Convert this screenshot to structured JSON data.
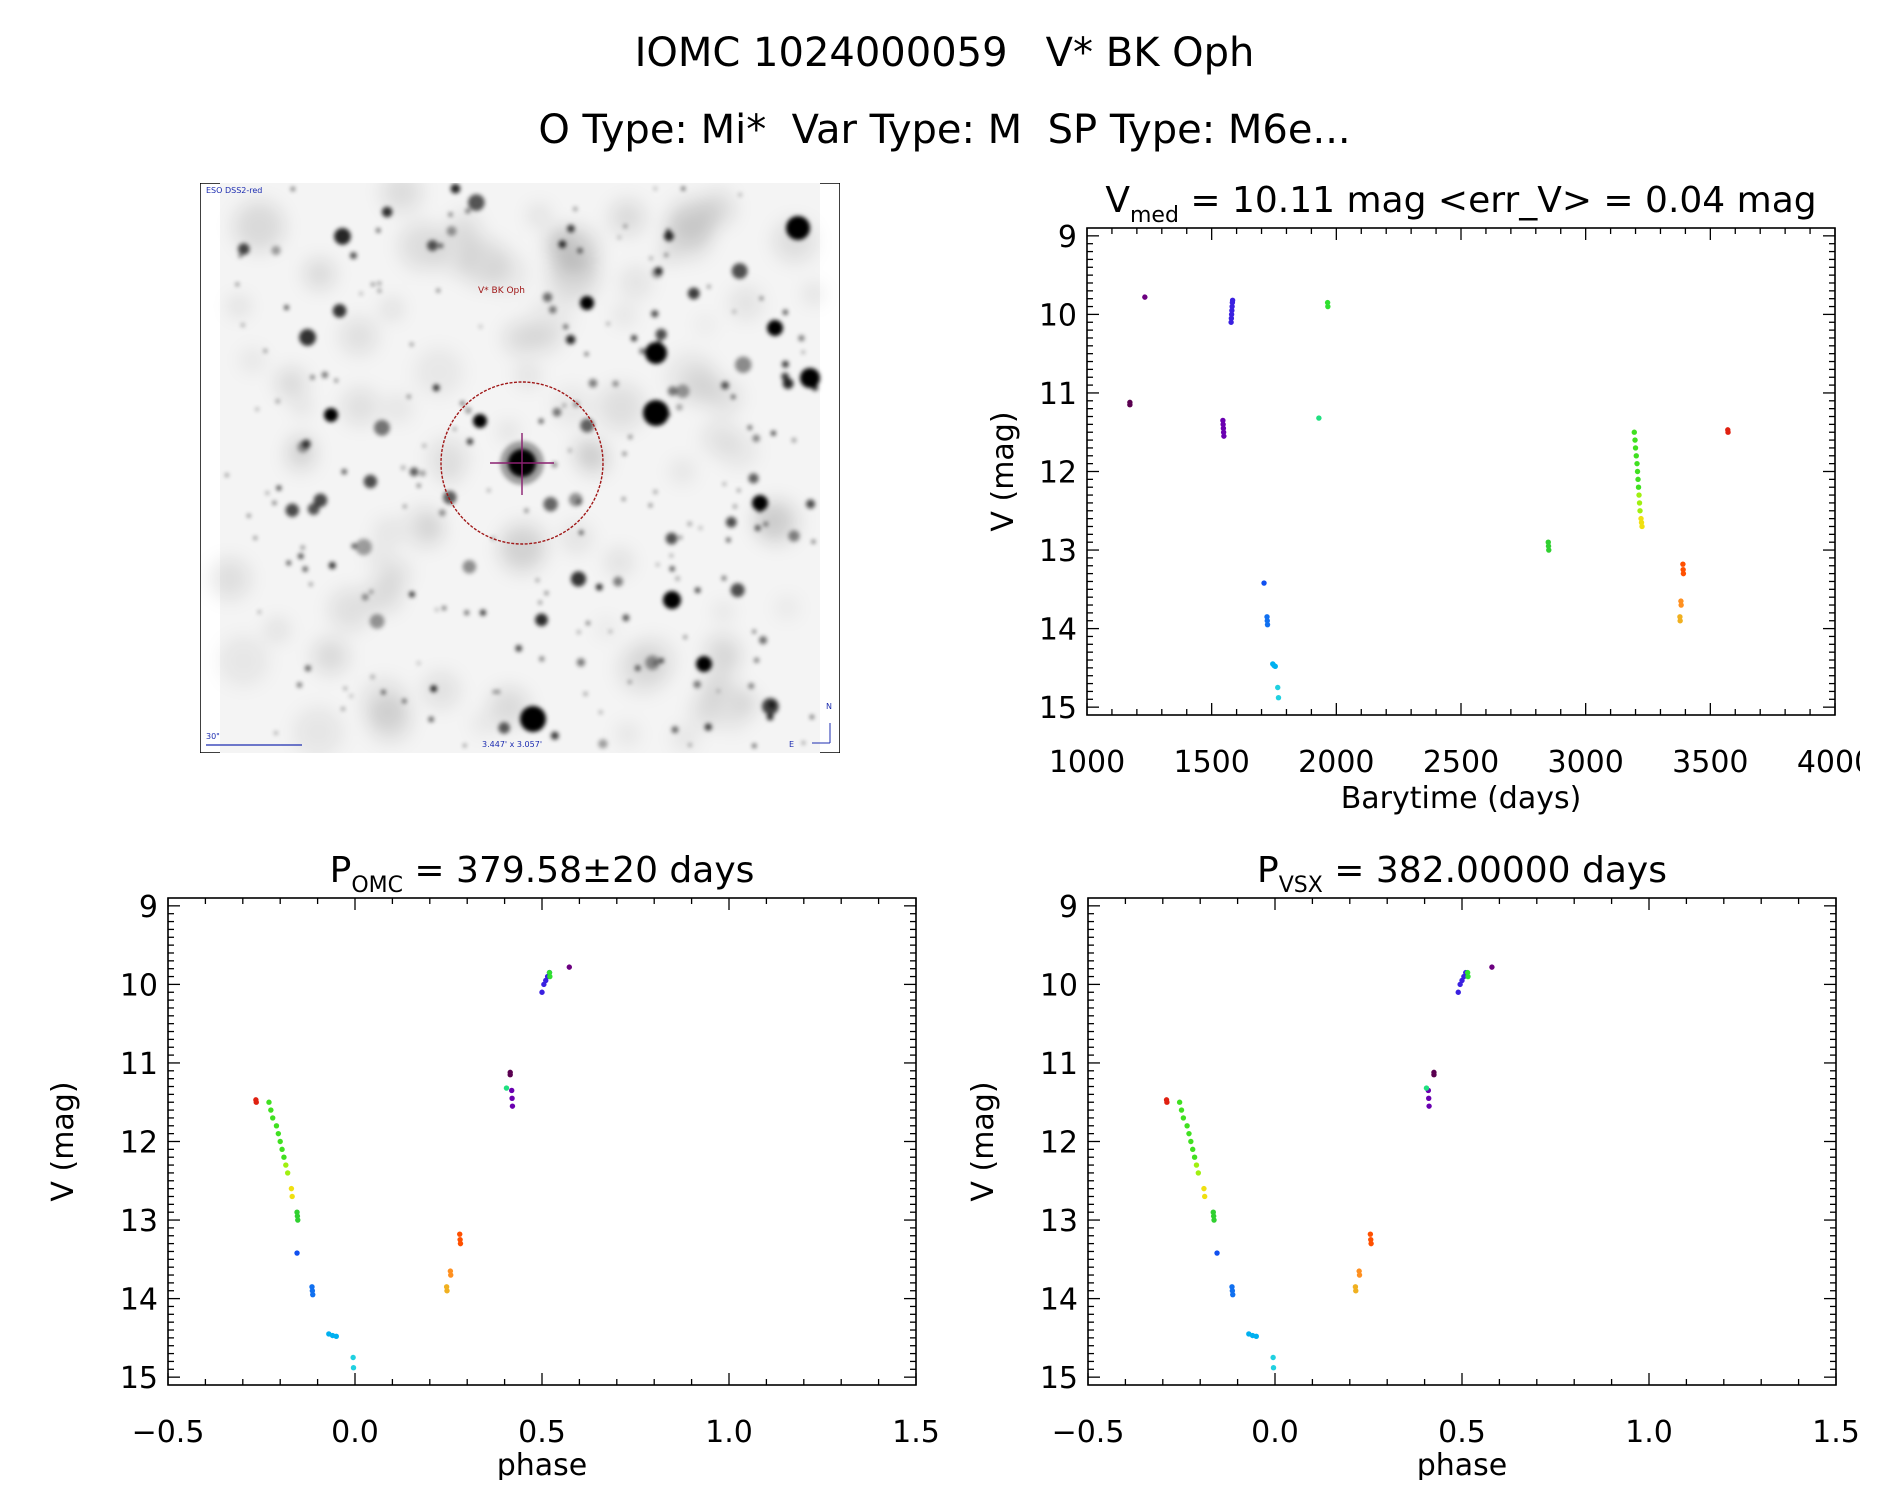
{
  "header": {
    "line1": "IOMC 1024000059   V* BK Oph",
    "line2": "O Type: Mi*  Var Type: M  SP Type: M6e..."
  },
  "finder": {
    "survey_label": "ESO DSS2-red",
    "target_label": "V* BK Oph",
    "scale_label": "30\"",
    "fov_label": "3.447' x 3.057'",
    "north_label": "N",
    "east_label": "E",
    "marker_color": "#a01818",
    "ink_color": "#1c2cb0"
  },
  "chart_data": [
    {
      "id": "lightcurve",
      "type": "scatter",
      "title": {
        "main": "V",
        "sub": "med",
        "rest": " = 10.11 mag <err_V> = 0.04 mag"
      },
      "xlabel": "Barytime (days)",
      "ylabel": "V (mag)",
      "xlim": [
        1000,
        4000
      ],
      "ylim": [
        15.1,
        8.9
      ],
      "y_inverted": true,
      "xticks": [
        1000,
        1500,
        2000,
        2500,
        3000,
        3500,
        4000
      ],
      "xtick_labels": [
        "1000",
        "1500",
        "2000",
        "2500",
        "3000",
        "3500",
        "4000"
      ],
      "yticks": [
        9,
        10,
        11,
        12,
        13,
        14,
        15
      ],
      "ytick_labels": [
        "9",
        "10",
        "11",
        "12",
        "13",
        "14",
        "15"
      ],
      "series": [
        {
          "color": "#5a0050",
          "points": [
            [
              1172,
              11.12
            ],
            [
              1172,
              11.15
            ]
          ]
        },
        {
          "color": "#6c0080",
          "points": [
            [
              1232,
              9.78
            ]
          ]
        },
        {
          "color": "#6a00b0",
          "points": [
            [
              1545,
              11.35
            ],
            [
              1546,
              11.4
            ],
            [
              1547,
              11.45
            ],
            [
              1548,
              11.5
            ],
            [
              1549,
              11.55
            ]
          ]
        },
        {
          "color": "#3a20e0",
          "points": [
            [
              1578,
              10.1
            ],
            [
              1579,
              10.05
            ],
            [
              1580,
              10.0
            ],
            [
              1581,
              9.95
            ],
            [
              1582,
              9.9
            ],
            [
              1583,
              9.85
            ],
            [
              1584,
              9.82
            ]
          ]
        },
        {
          "color": "#1050f0",
          "points": [
            [
              1710,
              13.42
            ]
          ]
        },
        {
          "color": "#1070f0",
          "points": [
            [
              1722,
              13.85
            ],
            [
              1723,
              13.9
            ],
            [
              1724,
              13.95
            ]
          ]
        },
        {
          "color": "#00b0f0",
          "points": [
            [
              1745,
              14.45
            ],
            [
              1750,
              14.47
            ],
            [
              1755,
              14.48
            ]
          ]
        },
        {
          "color": "#20d0e0",
          "points": [
            [
              1765,
              14.75
            ],
            [
              1768,
              14.88
            ]
          ]
        },
        {
          "color": "#20e080",
          "points": [
            [
              1930,
              11.32
            ]
          ]
        },
        {
          "color": "#30e030",
          "points": [
            [
              1965,
              9.85
            ],
            [
              1966,
              9.9
            ]
          ]
        },
        {
          "color": "#30d030",
          "points": [
            [
              2850,
              12.9
            ],
            [
              2851,
              12.95
            ],
            [
              2852,
              13.0
            ]
          ]
        },
        {
          "color": "#40e020",
          "points": [
            [
              3195,
              11.5
            ],
            [
              3198,
              11.6
            ],
            [
              3200,
              11.7
            ],
            [
              3203,
              11.8
            ],
            [
              3206,
              11.9
            ],
            [
              3208,
              12.0
            ],
            [
              3210,
              12.1
            ],
            [
              3212,
              12.2
            ]
          ]
        },
        {
          "color": "#a0f010",
          "points": [
            [
              3214,
              12.3
            ],
            [
              3216,
              12.4
            ],
            [
              3218,
              12.5
            ]
          ]
        },
        {
          "color": "#f0e010",
          "points": [
            [
              3222,
              12.6
            ],
            [
              3224,
              12.65
            ],
            [
              3226,
              12.7
            ]
          ]
        },
        {
          "color": "#ff5000",
          "points": [
            [
              3390,
              13.18
            ],
            [
              3391,
              13.25
            ],
            [
              3392,
              13.3
            ]
          ]
        },
        {
          "color": "#ff9020",
          "points": [
            [
              3382,
              13.65
            ],
            [
              3383,
              13.7
            ]
          ]
        },
        {
          "color": "#f0b020",
          "points": [
            [
              3378,
              13.85
            ],
            [
              3379,
              13.9
            ]
          ]
        },
        {
          "color": "#e02010",
          "points": [
            [
              3570,
              11.47
            ],
            [
              3571,
              11.5
            ]
          ]
        }
      ]
    },
    {
      "id": "phase-omc",
      "type": "scatter",
      "title": {
        "main": "P",
        "sub": "OMC",
        "rest": " = 379.58±20 days"
      },
      "xlabel": "phase",
      "ylabel": "V (mag)",
      "xlim": [
        -0.5,
        1.5
      ],
      "ylim": [
        15.1,
        8.9
      ],
      "y_inverted": true,
      "xticks": [
        -0.5,
        0.0,
        0.5,
        1.0,
        1.5
      ],
      "xtick_labels": [
        "−0.5",
        "0.0",
        "0.5",
        "1.0",
        "1.5"
      ],
      "yticks": [
        9,
        10,
        11,
        12,
        13,
        14,
        15
      ],
      "ytick_labels": [
        "9",
        "10",
        "11",
        "12",
        "13",
        "14",
        "15"
      ],
      "series": [
        {
          "color": "#5a0050",
          "points": [
            [
              0.415,
              11.12
            ],
            [
              0.415,
              11.15
            ]
          ]
        },
        {
          "color": "#6c0080",
          "points": [
            [
              0.573,
              9.78
            ]
          ]
        },
        {
          "color": "#6a00b0",
          "points": [
            [
              0.419,
              11.35
            ],
            [
              0.42,
              11.45
            ],
            [
              0.421,
              11.55
            ]
          ]
        },
        {
          "color": "#3a20e0",
          "points": [
            [
              0.5,
              10.1
            ],
            [
              0.505,
              10.0
            ],
            [
              0.51,
              9.95
            ],
            [
              0.515,
              9.9
            ],
            [
              0.52,
              9.85
            ]
          ]
        },
        {
          "color": "#1050f0",
          "points": [
            [
              -0.155,
              13.42
            ]
          ]
        },
        {
          "color": "#1070f0",
          "points": [
            [
              -0.115,
              13.85
            ],
            [
              -0.114,
              13.9
            ],
            [
              -0.113,
              13.95
            ]
          ]
        },
        {
          "color": "#00b0f0",
          "points": [
            [
              -0.07,
              14.45
            ],
            [
              -0.06,
              14.47
            ],
            [
              -0.05,
              14.48
            ]
          ]
        },
        {
          "color": "#20d0e0",
          "points": [
            [
              -0.005,
              14.75
            ],
            [
              -0.004,
              14.88
            ]
          ]
        },
        {
          "color": "#20e080",
          "points": [
            [
              0.405,
              11.32
            ]
          ]
        },
        {
          "color": "#30e030",
          "points": [
            [
              0.52,
              9.85
            ],
            [
              0.521,
              9.9
            ]
          ]
        },
        {
          "color": "#30d030",
          "points": [
            [
              -0.155,
              12.9
            ],
            [
              -0.154,
              12.95
            ],
            [
              -0.153,
              13.0
            ]
          ]
        },
        {
          "color": "#40e020",
          "points": [
            [
              -0.23,
              11.5
            ],
            [
              -0.225,
              11.6
            ],
            [
              -0.22,
              11.7
            ],
            [
              -0.21,
              11.8
            ],
            [
              -0.205,
              11.9
            ],
            [
              -0.2,
              12.0
            ],
            [
              -0.195,
              12.1
            ],
            [
              -0.19,
              12.2
            ]
          ]
        },
        {
          "color": "#a0f010",
          "points": [
            [
              -0.185,
              12.3
            ],
            [
              -0.18,
              12.4
            ]
          ]
        },
        {
          "color": "#f0e010",
          "points": [
            [
              -0.17,
              12.6
            ],
            [
              -0.168,
              12.7
            ]
          ]
        },
        {
          "color": "#ff5000",
          "points": [
            [
              0.28,
              13.18
            ],
            [
              0.281,
              13.25
            ],
            [
              0.282,
              13.3
            ]
          ]
        },
        {
          "color": "#ff9020",
          "points": [
            [
              0.255,
              13.65
            ],
            [
              0.256,
              13.7
            ]
          ]
        },
        {
          "color": "#f0b020",
          "points": [
            [
              0.245,
              13.85
            ],
            [
              0.246,
              13.9
            ]
          ]
        },
        {
          "color": "#e02010",
          "points": [
            [
              -0.265,
              11.47
            ],
            [
              -0.264,
              11.5
            ]
          ]
        }
      ]
    },
    {
      "id": "phase-vsx",
      "type": "scatter",
      "title": {
        "main": "P",
        "sub": "VSX",
        "rest": " = 382.00000 days"
      },
      "xlabel": "phase",
      "ylabel": "V (mag)",
      "xlim": [
        -0.5,
        1.5
      ],
      "ylim": [
        15.1,
        8.9
      ],
      "y_inverted": true,
      "xticks": [
        -0.5,
        0.0,
        0.5,
        1.0,
        1.5
      ],
      "xtick_labels": [
        "−0.5",
        "0.0",
        "0.5",
        "1.0",
        "1.5"
      ],
      "yticks": [
        9,
        10,
        11,
        12,
        13,
        14,
        15
      ],
      "ytick_labels": [
        "9",
        "10",
        "11",
        "12",
        "13",
        "14",
        "15"
      ],
      "series": [
        {
          "color": "#5a0050",
          "points": [
            [
              0.425,
              11.12
            ],
            [
              0.425,
              11.15
            ]
          ]
        },
        {
          "color": "#6c0080",
          "points": [
            [
              0.58,
              9.78
            ]
          ]
        },
        {
          "color": "#6a00b0",
          "points": [
            [
              0.41,
              11.35
            ],
            [
              0.411,
              11.45
            ],
            [
              0.412,
              11.55
            ]
          ]
        },
        {
          "color": "#3a20e0",
          "points": [
            [
              0.49,
              10.1
            ],
            [
              0.495,
              10.0
            ],
            [
              0.5,
              9.95
            ],
            [
              0.505,
              9.9
            ],
            [
              0.51,
              9.85
            ]
          ]
        },
        {
          "color": "#1050f0",
          "points": [
            [
              -0.155,
              13.42
            ]
          ]
        },
        {
          "color": "#1070f0",
          "points": [
            [
              -0.115,
              13.85
            ],
            [
              -0.114,
              13.9
            ],
            [
              -0.113,
              13.95
            ]
          ]
        },
        {
          "color": "#00b0f0",
          "points": [
            [
              -0.07,
              14.45
            ],
            [
              -0.06,
              14.47
            ],
            [
              -0.05,
              14.48
            ]
          ]
        },
        {
          "color": "#20d0e0",
          "points": [
            [
              -0.005,
              14.75
            ],
            [
              -0.004,
              14.88
            ]
          ]
        },
        {
          "color": "#20e080",
          "points": [
            [
              0.405,
              11.32
            ]
          ]
        },
        {
          "color": "#30e030",
          "points": [
            [
              0.515,
              9.85
            ],
            [
              0.516,
              9.9
            ]
          ]
        },
        {
          "color": "#30d030",
          "points": [
            [
              -0.165,
              12.9
            ],
            [
              -0.164,
              12.95
            ],
            [
              -0.163,
              13.0
            ]
          ]
        },
        {
          "color": "#40e020",
          "points": [
            [
              -0.255,
              11.5
            ],
            [
              -0.25,
              11.6
            ],
            [
              -0.245,
              11.7
            ],
            [
              -0.235,
              11.8
            ],
            [
              -0.23,
              11.9
            ],
            [
              -0.225,
              12.0
            ],
            [
              -0.22,
              12.1
            ],
            [
              -0.215,
              12.2
            ]
          ]
        },
        {
          "color": "#a0f010",
          "points": [
            [
              -0.21,
              12.3
            ],
            [
              -0.205,
              12.4
            ]
          ]
        },
        {
          "color": "#f0e010",
          "points": [
            [
              -0.19,
              12.6
            ],
            [
              -0.188,
              12.7
            ]
          ]
        },
        {
          "color": "#ff5000",
          "points": [
            [
              0.255,
              13.18
            ],
            [
              0.256,
              13.25
            ],
            [
              0.257,
              13.3
            ]
          ]
        },
        {
          "color": "#ff9020",
          "points": [
            [
              0.225,
              13.65
            ],
            [
              0.226,
              13.7
            ]
          ]
        },
        {
          "color": "#f0b020",
          "points": [
            [
              0.215,
              13.85
            ],
            [
              0.216,
              13.9
            ]
          ]
        },
        {
          "color": "#e02010",
          "points": [
            [
              -0.29,
              11.47
            ],
            [
              -0.289,
              11.5
            ]
          ]
        }
      ]
    }
  ]
}
